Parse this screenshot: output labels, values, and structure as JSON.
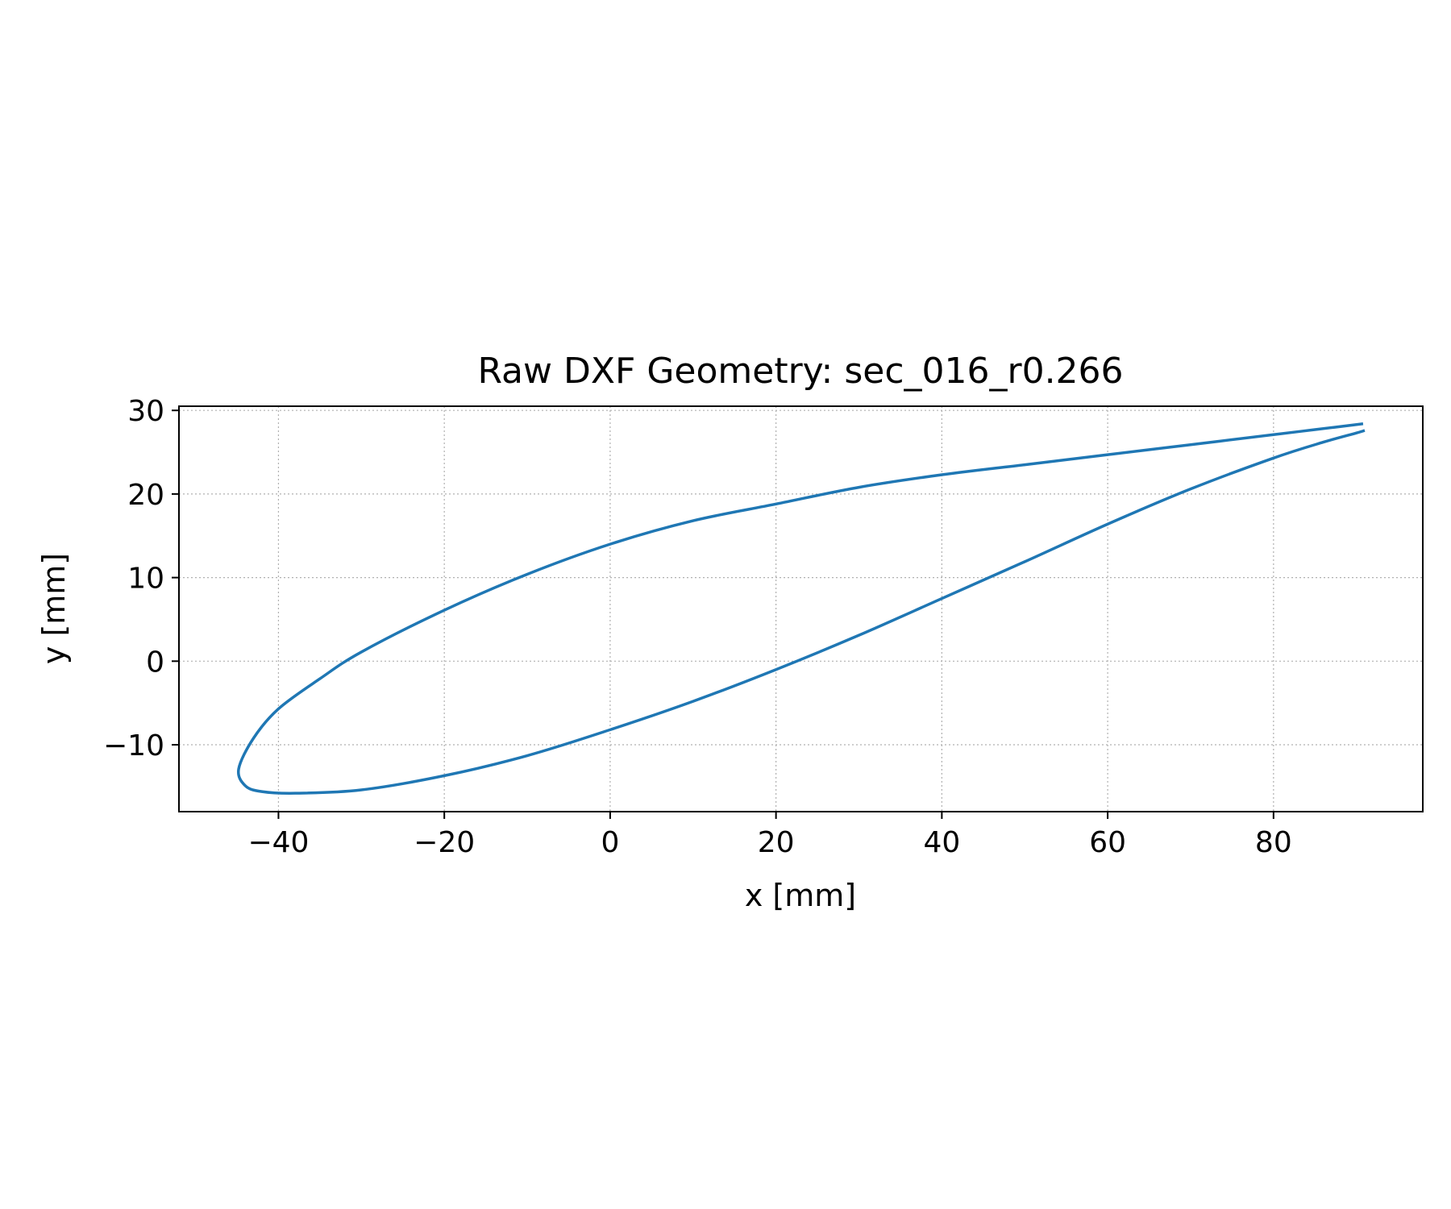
{
  "chart_data": {
    "type": "line",
    "title": "Raw DXF Geometry: sec_016_r0.266",
    "xlabel": "x [mm]",
    "ylabel": "y [mm]",
    "xlim": [
      -52,
      98
    ],
    "ylim": [
      -18,
      30.5
    ],
    "xticks": [
      -40,
      -20,
      0,
      20,
      40,
      60,
      80
    ],
    "xtick_labels": [
      "−40",
      "−20",
      "0",
      "20",
      "40",
      "60",
      "80"
    ],
    "yticks": [
      -10,
      0,
      10,
      20,
      30
    ],
    "ytick_labels": [
      "−10",
      "0",
      "10",
      "20",
      "30"
    ],
    "grid": true,
    "legend": "none",
    "series": [
      {
        "color": "#1f77b4",
        "x": [
          90.8,
          85,
          80,
          70,
          60,
          50,
          40,
          30,
          20,
          10,
          0,
          -10,
          -20,
          -30,
          -35,
          -40,
          -43,
          -44.8,
          -44,
          -42,
          -38,
          -30,
          -20,
          -10,
          0,
          10,
          20,
          30,
          40,
          50,
          60,
          70,
          80,
          86,
          90,
          91
        ],
        "y": [
          28.4,
          27.7,
          27.1,
          25.9,
          24.7,
          23.5,
          22.3,
          20.8,
          18.8,
          16.8,
          14.0,
          10.4,
          6.1,
          1.1,
          -2.1,
          -5.7,
          -9.2,
          -12.9,
          -14.9,
          -15.6,
          -15.8,
          -15.4,
          -13.7,
          -11.3,
          -8.2,
          -4.8,
          -1.0,
          3.1,
          7.5,
          11.9,
          16.4,
          20.6,
          24.3,
          26.2,
          27.3,
          27.6
        ]
      }
    ]
  }
}
